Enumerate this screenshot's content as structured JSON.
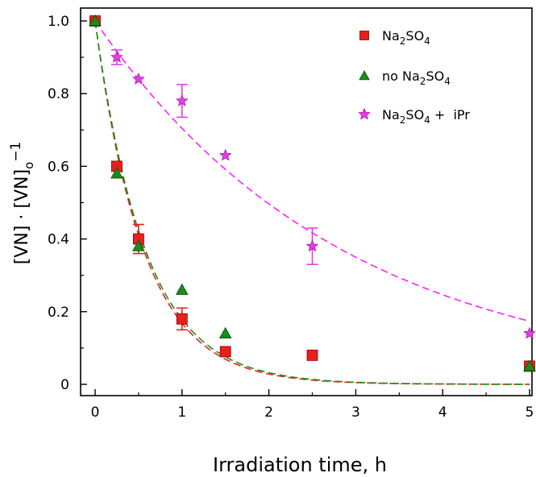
{
  "chart_data": {
    "type": "scatter",
    "xlabel": "Irradiation time, h",
    "ylabel": {
      "parts": [
        "[VN] · [VN]",
        "o",
        "−1"
      ]
    },
    "xlim": [
      0,
      5
    ],
    "ylim": [
      0,
      1.0
    ],
    "xticks": [
      "0",
      "1",
      "2",
      "3",
      "4",
      "5"
    ],
    "yticks": [
      "0",
      "0.2",
      "0.4",
      "0.6",
      "0.8",
      "1.0"
    ],
    "legend_position": "top-right",
    "series": [
      {
        "label_parts": [
          "Na",
          "2",
          "SO",
          "4",
          ""
        ],
        "marker": "square",
        "color": "#e8201c",
        "x": [
          0,
          0.25,
          0.5,
          1,
          1.5,
          2.5,
          5
        ],
        "y": [
          1.0,
          0.6,
          0.4,
          0.18,
          0.09,
          0.08,
          0.05
        ],
        "err": [
          0,
          0,
          0.04,
          0.03,
          0,
          0,
          0
        ],
        "fit": {
          "type": "exponential",
          "k": 1.78,
          "color": "#e8201c"
        }
      },
      {
        "label_parts": [
          "no Na",
          "2",
          "SO",
          "4",
          ""
        ],
        "marker": "triangle",
        "color": "#1a8c1a",
        "x": [
          0,
          0.25,
          0.5,
          1,
          1.5,
          5
        ],
        "y": [
          1.0,
          0.58,
          0.38,
          0.26,
          0.14,
          0.05
        ],
        "err": [
          0,
          0,
          0,
          0,
          0,
          0
        ],
        "fit": {
          "type": "exponential",
          "k": 1.72,
          "color": "#1a8c1a"
        }
      },
      {
        "label_parts": [
          "Na",
          "2",
          "SO",
          "4",
          " + iPr"
        ],
        "marker": "star",
        "color": "#e040e0",
        "x": [
          0,
          0.25,
          0.5,
          1,
          1.5,
          2.5,
          5
        ],
        "y": [
          1.0,
          0.9,
          0.84,
          0.78,
          0.63,
          0.38,
          0.14
        ],
        "err": [
          0,
          0.02,
          0,
          0.045,
          0,
          0.05,
          0
        ],
        "fit": {
          "type": "exponential",
          "k": 0.35,
          "color": "#ff22ff"
        }
      }
    ]
  }
}
